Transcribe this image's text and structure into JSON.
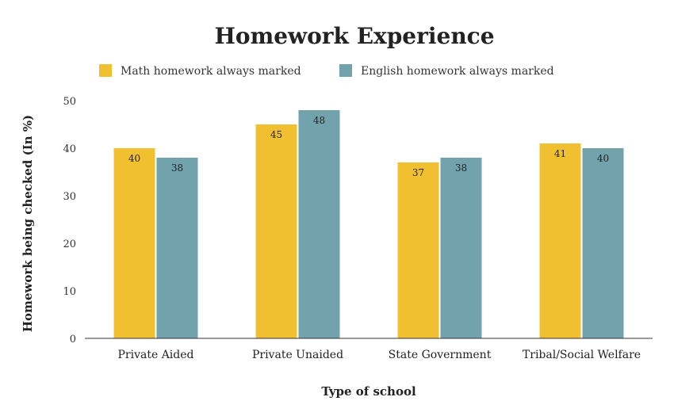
{
  "chart_data": {
    "type": "bar",
    "title": "Homework Experience",
    "xlabel": "Type of school",
    "ylabel": "Homework being checked (In %)",
    "categories": [
      "Private Aided",
      "Private Unaided",
      "State Government",
      "Tribal/Social Welfare"
    ],
    "series": [
      {
        "name": "Math homework always marked",
        "values": [
          40,
          45,
          37,
          41
        ],
        "color": "#F0C030"
      },
      {
        "name": "English homework always marked",
        "values": [
          38,
          48,
          38,
          40
        ],
        "color": "#72A3AC"
      }
    ],
    "ylim": [
      0,
      50
    ],
    "yticks": [
      0,
      10,
      20,
      30,
      40,
      50
    ],
    "grid": false,
    "legend_position": "top",
    "data_labels": true
  }
}
